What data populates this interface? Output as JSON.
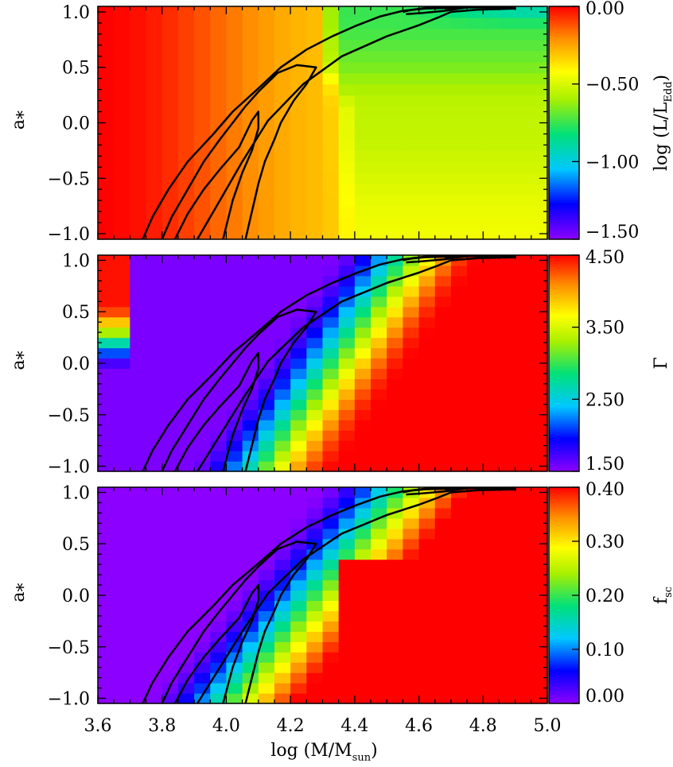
{
  "chart_data": [
    {
      "type": "heatmap",
      "quantity": "L/L_Edd",
      "xlim": [
        3.6,
        5.0
      ],
      "ylim": [
        -1.05,
        1.05
      ],
      "ylabel": "a",
      "ylabel_sub": "*",
      "yticks": [
        "1.0",
        "0.5",
        "0.0",
        "−0.5",
        "−1.0"
      ],
      "colorbar": {
        "label_main": "log (L/L",
        "label_sub": "Edd",
        "label_close": ")",
        "range": [
          -1.5,
          0.0
        ],
        "ticks": [
          {
            "value": 0.0,
            "label": "0.00"
          },
          {
            "value": -0.5,
            "label": "−0.50"
          },
          {
            "value": -1.0,
            "label": "−1.00"
          },
          {
            "value": -1.5,
            "label": "−1.50"
          }
        ]
      }
    },
    {
      "type": "heatmap",
      "quantity": "Gamma",
      "xlim": [
        3.6,
        5.0
      ],
      "ylim": [
        -1.05,
        1.05
      ],
      "ylabel": "a",
      "ylabel_sub": "*",
      "yticks": [
        "1.0",
        "0.5",
        "0.0",
        "−0.5",
        "−1.0"
      ],
      "colorbar": {
        "label_main": "Γ",
        "label_sub": "",
        "label_close": "",
        "range": [
          1.5,
          4.5
        ],
        "ticks": [
          {
            "value": 4.5,
            "label": "4.50"
          },
          {
            "value": 3.5,
            "label": "3.50"
          },
          {
            "value": 2.5,
            "label": "2.50"
          },
          {
            "value": 1.5,
            "label": "1.50"
          }
        ]
      }
    },
    {
      "type": "heatmap",
      "quantity": "f_sc",
      "xlim": [
        3.6,
        5.0
      ],
      "ylim": [
        -1.05,
        1.05
      ],
      "ylabel": "a",
      "ylabel_sub": "*",
      "yticks": [
        "1.0",
        "0.5",
        "0.0",
        "−0.5",
        "−1.0"
      ],
      "xlabel_main": "log (M/M",
      "xlabel_sub": "sun",
      "xlabel_close": ")",
      "xticks": [
        "3.6",
        "3.8",
        "4.0",
        "4.2",
        "4.4",
        "4.6",
        "4.8",
        "5.0"
      ],
      "colorbar": {
        "label_main": "f",
        "label_sub": "sc",
        "label_close": "",
        "range": [
          0.0,
          0.4
        ],
        "ticks": [
          {
            "value": 0.4,
            "label": "0.40"
          },
          {
            "value": 0.3,
            "label": "0.30"
          },
          {
            "value": 0.2,
            "label": "0.20"
          },
          {
            "value": 0.1,
            "label": "0.10"
          },
          {
            "value": 0.0,
            "label": "0.00"
          }
        ]
      }
    }
  ]
}
